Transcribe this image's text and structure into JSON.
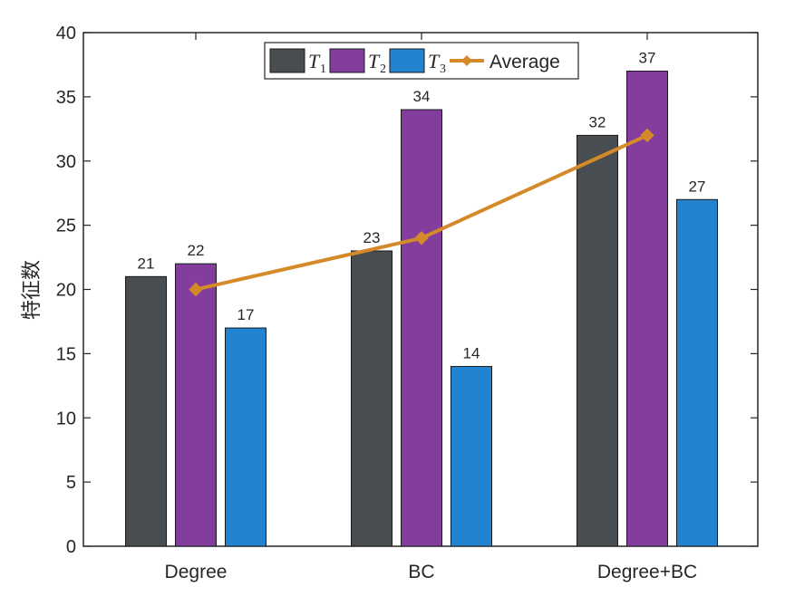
{
  "chart_data": {
    "type": "bar",
    "categories": [
      "Degree",
      "BC",
      "Degree+BC"
    ],
    "series": [
      {
        "name": "T",
        "subscript": "1",
        "values": [
          21,
          23,
          32
        ],
        "color": "#474d50"
      },
      {
        "name": "T",
        "subscript": "2",
        "values": [
          22,
          34,
          37
        ],
        "color": "#833d9c"
      },
      {
        "name": "T",
        "subscript": "3",
        "values": [
          17,
          14,
          27
        ],
        "color": "#2283d1"
      }
    ],
    "line_series": {
      "name": "Average",
      "values": [
        20,
        24,
        32
      ],
      "color": "#d58a2a",
      "marker": "diamond"
    },
    "ylabel": "特征数",
    "xlabel": "",
    "ylim": [
      0,
      40
    ],
    "yticks": [
      0,
      5,
      10,
      15,
      20,
      25,
      30,
      35,
      40
    ],
    "legend_position": "top",
    "grid": false
  }
}
